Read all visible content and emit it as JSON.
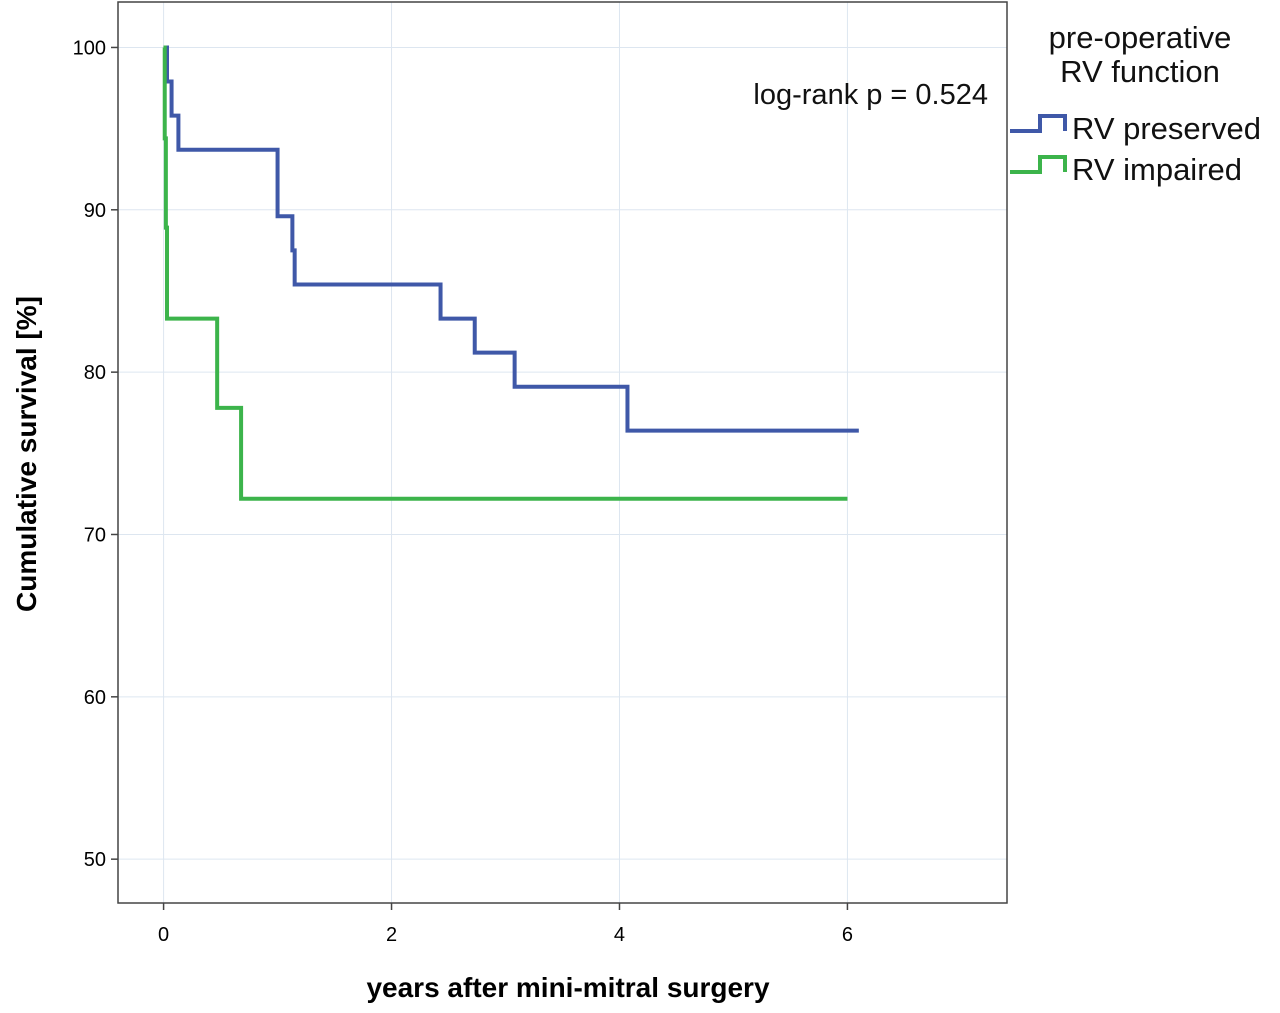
{
  "chart_data": {
    "type": "line",
    "xlabel": "years after mini-mitral surgery",
    "ylabel": "Cumulative survival [%]",
    "xlim": [
      -0.4,
      7.4
    ],
    "ylim": [
      47.3,
      102.8
    ],
    "x_ticks": [
      0,
      2,
      4,
      6
    ],
    "y_ticks": [
      50,
      60,
      70,
      80,
      90,
      100
    ],
    "grid": true,
    "step": true,
    "annotation": "log-rank p = 0.524",
    "legend": {
      "title_lines": [
        "pre-operative",
        "RV function"
      ],
      "position": "top-right-outside"
    },
    "series": [
      {
        "name": "RV preserved",
        "color": "#3f58a8",
        "x": [
          0,
          0.03,
          0.07,
          0.1,
          0.13,
          1.0,
          1.13,
          1.15,
          2.43,
          2.73,
          3.08,
          4.07,
          6.1
        ],
        "y": [
          100,
          97.9,
          95.8,
          95.8,
          93.7,
          89.6,
          87.5,
          85.4,
          83.3,
          81.2,
          79.1,
          76.4,
          76.4
        ]
      },
      {
        "name": "RV impaired",
        "color": "#3cb44b",
        "x": [
          0,
          0.01,
          0.02,
          0.03,
          0.47,
          0.68,
          6.0
        ],
        "y": [
          100,
          94.4,
          88.9,
          83.3,
          77.8,
          72.2,
          72.2
        ]
      }
    ]
  }
}
